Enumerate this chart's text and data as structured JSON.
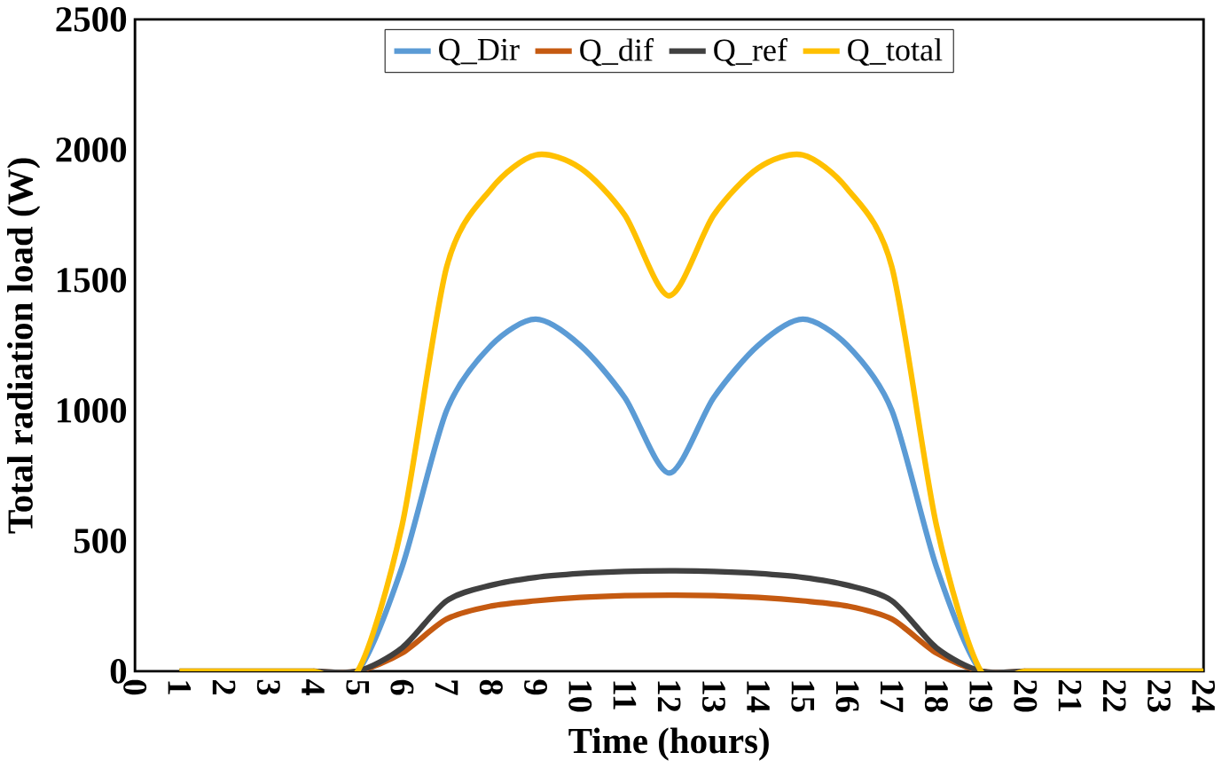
{
  "chart_data": {
    "type": "line",
    "xlabel": "Time (hours)",
    "ylabel": "Total radiation load (W)",
    "x": [
      1,
      2,
      3,
      4,
      5,
      6,
      7,
      8,
      9,
      10,
      11,
      12,
      13,
      14,
      15,
      16,
      17,
      18,
      19,
      20,
      21,
      22,
      23,
      24
    ],
    "series": [
      {
        "name": "Q_Dir",
        "color": "#5b9bd5",
        "values": [
          null,
          null,
          null,
          0,
          0,
          400,
          1000,
          1250,
          1350,
          1250,
          1050,
          760,
          1050,
          1250,
          1350,
          1250,
          1000,
          400,
          0,
          0,
          null,
          null,
          null,
          null
        ]
      },
      {
        "name": "Q_dif",
        "color": "#c55a11",
        "values": [
          null,
          null,
          null,
          0,
          0,
          70,
          200,
          250,
          270,
          283,
          290,
          292,
          290,
          283,
          270,
          250,
          200,
          70,
          0,
          0,
          null,
          null,
          null,
          null
        ]
      },
      {
        "name": "Q_ref",
        "color": "#404040",
        "values": [
          0,
          0,
          0,
          0,
          0,
          90,
          270,
          330,
          360,
          375,
          383,
          385,
          383,
          375,
          360,
          330,
          270,
          90,
          0,
          0,
          0,
          0,
          0,
          0
        ]
      },
      {
        "name": "Q_total",
        "color": "#ffc000",
        "values": [
          0,
          0,
          0,
          0,
          0,
          560,
          1550,
          1850,
          1980,
          1930,
          1750,
          1440,
          1750,
          1930,
          1980,
          1850,
          1550,
          560,
          0,
          0,
          0,
          0,
          0,
          0
        ]
      }
    ],
    "xlim": [
      0,
      24
    ],
    "xticks": [
      0,
      1,
      2,
      3,
      4,
      5,
      6,
      7,
      8,
      9,
      10,
      11,
      12,
      13,
      14,
      15,
      16,
      17,
      18,
      19,
      20,
      21,
      22,
      23,
      24
    ],
    "ylim": [
      0,
      2500
    ],
    "yticks": [
      0,
      500,
      1000,
      1500,
      2000,
      2500
    ],
    "grid": false,
    "legend": "top",
    "marker": "none",
    "line_style": "solid"
  }
}
